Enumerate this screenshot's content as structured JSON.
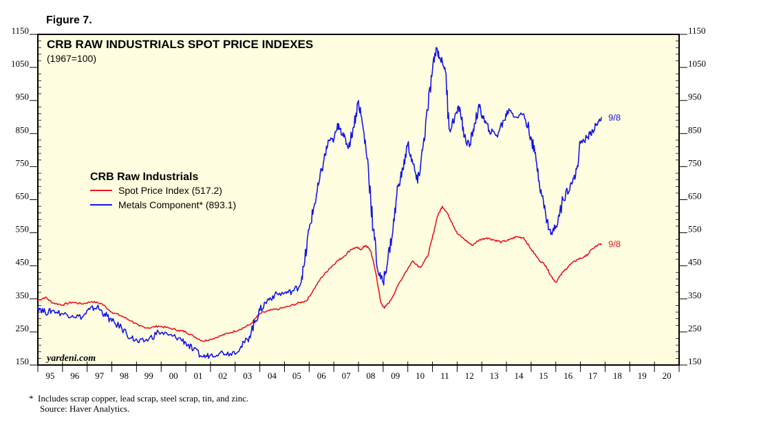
{
  "figure_label": "Figure 7.",
  "chart_data": {
    "type": "line",
    "title": "CRB RAW INDUSTRIALS SPOT PRICE INDEXES",
    "subtitle": "(1967=100)",
    "legend_title": "CRB Raw Industrials",
    "legend_position": "center-left",
    "watermark": "yardeni.com",
    "ylim": [
      150,
      1150
    ],
    "yticks": [
      150,
      250,
      350,
      450,
      550,
      650,
      750,
      850,
      950,
      1050,
      1150
    ],
    "xlim": [
      1995,
      2021
    ],
    "xticks": [
      "95",
      "96",
      "97",
      "98",
      "99",
      "00",
      "01",
      "02",
      "03",
      "04",
      "05",
      "06",
      "07",
      "08",
      "09",
      "10",
      "11",
      "12",
      "13",
      "14",
      "15",
      "16",
      "17",
      "18",
      "19",
      "20"
    ],
    "background": "#fffee0",
    "series": [
      {
        "name": "Spot Price Index (517.2)",
        "color": "#e8141e",
        "end_label": "9/8",
        "points": [
          [
            1995.0,
            345
          ],
          [
            1995.3,
            355
          ],
          [
            1995.6,
            338
          ],
          [
            1996.0,
            332
          ],
          [
            1996.4,
            340
          ],
          [
            1996.8,
            335
          ],
          [
            1997.2,
            342
          ],
          [
            1997.6,
            335
          ],
          [
            1998.0,
            310
          ],
          [
            1998.4,
            298
          ],
          [
            1998.8,
            283
          ],
          [
            1999.1,
            268
          ],
          [
            1999.5,
            262
          ],
          [
            1999.9,
            268
          ],
          [
            2000.3,
            262
          ],
          [
            2000.7,
            255
          ],
          [
            2001.0,
            250
          ],
          [
            2001.3,
            238
          ],
          [
            2001.7,
            222
          ],
          [
            2002.0,
            228
          ],
          [
            2002.4,
            238
          ],
          [
            2002.8,
            248
          ],
          [
            2003.2,
            258
          ],
          [
            2003.6,
            272
          ],
          [
            2004.0,
            305
          ],
          [
            2004.4,
            315
          ],
          [
            2004.8,
            320
          ],
          [
            2005.2,
            328
          ],
          [
            2005.6,
            338
          ],
          [
            2005.9,
            345
          ],
          [
            2006.2,
            380
          ],
          [
            2006.5,
            415
          ],
          [
            2006.8,
            440
          ],
          [
            2007.1,
            462
          ],
          [
            2007.4,
            478
          ],
          [
            2007.7,
            500
          ],
          [
            2007.9,
            505
          ],
          [
            2008.1,
            500
          ],
          [
            2008.3,
            512
          ],
          [
            2008.5,
            495
          ],
          [
            2008.7,
            430
          ],
          [
            2008.9,
            340
          ],
          [
            2009.05,
            322
          ],
          [
            2009.3,
            345
          ],
          [
            2009.6,
            390
          ],
          [
            2009.9,
            430
          ],
          [
            2010.2,
            465
          ],
          [
            2010.5,
            445
          ],
          [
            2010.8,
            478
          ],
          [
            2011.0,
            535
          ],
          [
            2011.2,
            600
          ],
          [
            2011.4,
            630
          ],
          [
            2011.6,
            610
          ],
          [
            2011.8,
            580
          ],
          [
            2012.0,
            548
          ],
          [
            2012.3,
            530
          ],
          [
            2012.6,
            512
          ],
          [
            2012.9,
            528
          ],
          [
            2013.2,
            535
          ],
          [
            2013.5,
            528
          ],
          [
            2013.8,
            522
          ],
          [
            2014.1,
            528
          ],
          [
            2014.4,
            538
          ],
          [
            2014.7,
            535
          ],
          [
            2015.0,
            500
          ],
          [
            2015.3,
            470
          ],
          [
            2015.6,
            450
          ],
          [
            2015.8,
            420
          ],
          [
            2016.0,
            400
          ],
          [
            2016.3,
            432
          ],
          [
            2016.6,
            455
          ],
          [
            2016.9,
            470
          ],
          [
            2017.2,
            478
          ],
          [
            2017.5,
            502
          ],
          [
            2017.7,
            512
          ],
          [
            2017.85,
            517
          ]
        ]
      },
      {
        "name": "Metals Component* (893.1)",
        "color": "#1414e6",
        "end_label": "9/8",
        "points": [
          [
            1995.0,
            328
          ],
          [
            1995.3,
            308
          ],
          [
            1995.6,
            315
          ],
          [
            1996.0,
            305
          ],
          [
            1996.4,
            300
          ],
          [
            1996.8,
            295
          ],
          [
            1997.1,
            318
          ],
          [
            1997.4,
            325
          ],
          [
            1997.7,
            305
          ],
          [
            1998.0,
            282
          ],
          [
            1998.4,
            262
          ],
          [
            1998.8,
            232
          ],
          [
            1999.1,
            218
          ],
          [
            1999.5,
            228
          ],
          [
            1999.9,
            250
          ],
          [
            2000.3,
            240
          ],
          [
            2000.7,
            232
          ],
          [
            2001.0,
            218
          ],
          [
            2001.3,
            195
          ],
          [
            2001.7,
            175
          ],
          [
            2002.0,
            180
          ],
          [
            2002.4,
            188
          ],
          [
            2002.8,
            185
          ],
          [
            2003.2,
            200
          ],
          [
            2003.5,
            228
          ],
          [
            2003.8,
            278
          ],
          [
            2004.0,
            315
          ],
          [
            2004.3,
            345
          ],
          [
            2004.6,
            362
          ],
          [
            2005.0,
            368
          ],
          [
            2005.3,
            372
          ],
          [
            2005.6,
            388
          ],
          [
            2005.8,
            450
          ],
          [
            2006.0,
            560
          ],
          [
            2006.2,
            630
          ],
          [
            2006.4,
            700
          ],
          [
            2006.6,
            770
          ],
          [
            2006.8,
            830
          ],
          [
            2007.0,
            830
          ],
          [
            2007.2,
            880
          ],
          [
            2007.4,
            840
          ],
          [
            2007.6,
            810
          ],
          [
            2007.8,
            870
          ],
          [
            2008.0,
            950
          ],
          [
            2008.2,
            860
          ],
          [
            2008.4,
            750
          ],
          [
            2008.6,
            560
          ],
          [
            2008.8,
            430
          ],
          [
            2009.0,
            400
          ],
          [
            2009.2,
            475
          ],
          [
            2009.4,
            560
          ],
          [
            2009.6,
            690
          ],
          [
            2009.8,
            740
          ],
          [
            2010.0,
            820
          ],
          [
            2010.2,
            760
          ],
          [
            2010.4,
            700
          ],
          [
            2010.6,
            800
          ],
          [
            2010.8,
            920
          ],
          [
            2011.0,
            1040
          ],
          [
            2011.15,
            1110
          ],
          [
            2011.3,
            1080
          ],
          [
            2011.5,
            1050
          ],
          [
            2011.7,
            860
          ],
          [
            2011.9,
            900
          ],
          [
            2012.1,
            930
          ],
          [
            2012.3,
            840
          ],
          [
            2012.5,
            810
          ],
          [
            2012.7,
            880
          ],
          [
            2012.9,
            930
          ],
          [
            2013.1,
            890
          ],
          [
            2013.3,
            860
          ],
          [
            2013.6,
            845
          ],
          [
            2013.9,
            890
          ],
          [
            2014.1,
            925
          ],
          [
            2014.4,
            900
          ],
          [
            2014.7,
            910
          ],
          [
            2015.0,
            840
          ],
          [
            2015.2,
            770
          ],
          [
            2015.4,
            680
          ],
          [
            2015.6,
            600
          ],
          [
            2015.8,
            545
          ],
          [
            2016.0,
            570
          ],
          [
            2016.3,
            650
          ],
          [
            2016.6,
            700
          ],
          [
            2016.8,
            720
          ],
          [
            2017.0,
            820
          ],
          [
            2017.3,
            840
          ],
          [
            2017.5,
            860
          ],
          [
            2017.7,
            880
          ],
          [
            2017.85,
            900
          ]
        ]
      }
    ]
  },
  "footnote": "*  Includes scrap copper, lead scrap, steel scrap, tin, and zinc.",
  "source": "Source: Haver Analytics."
}
